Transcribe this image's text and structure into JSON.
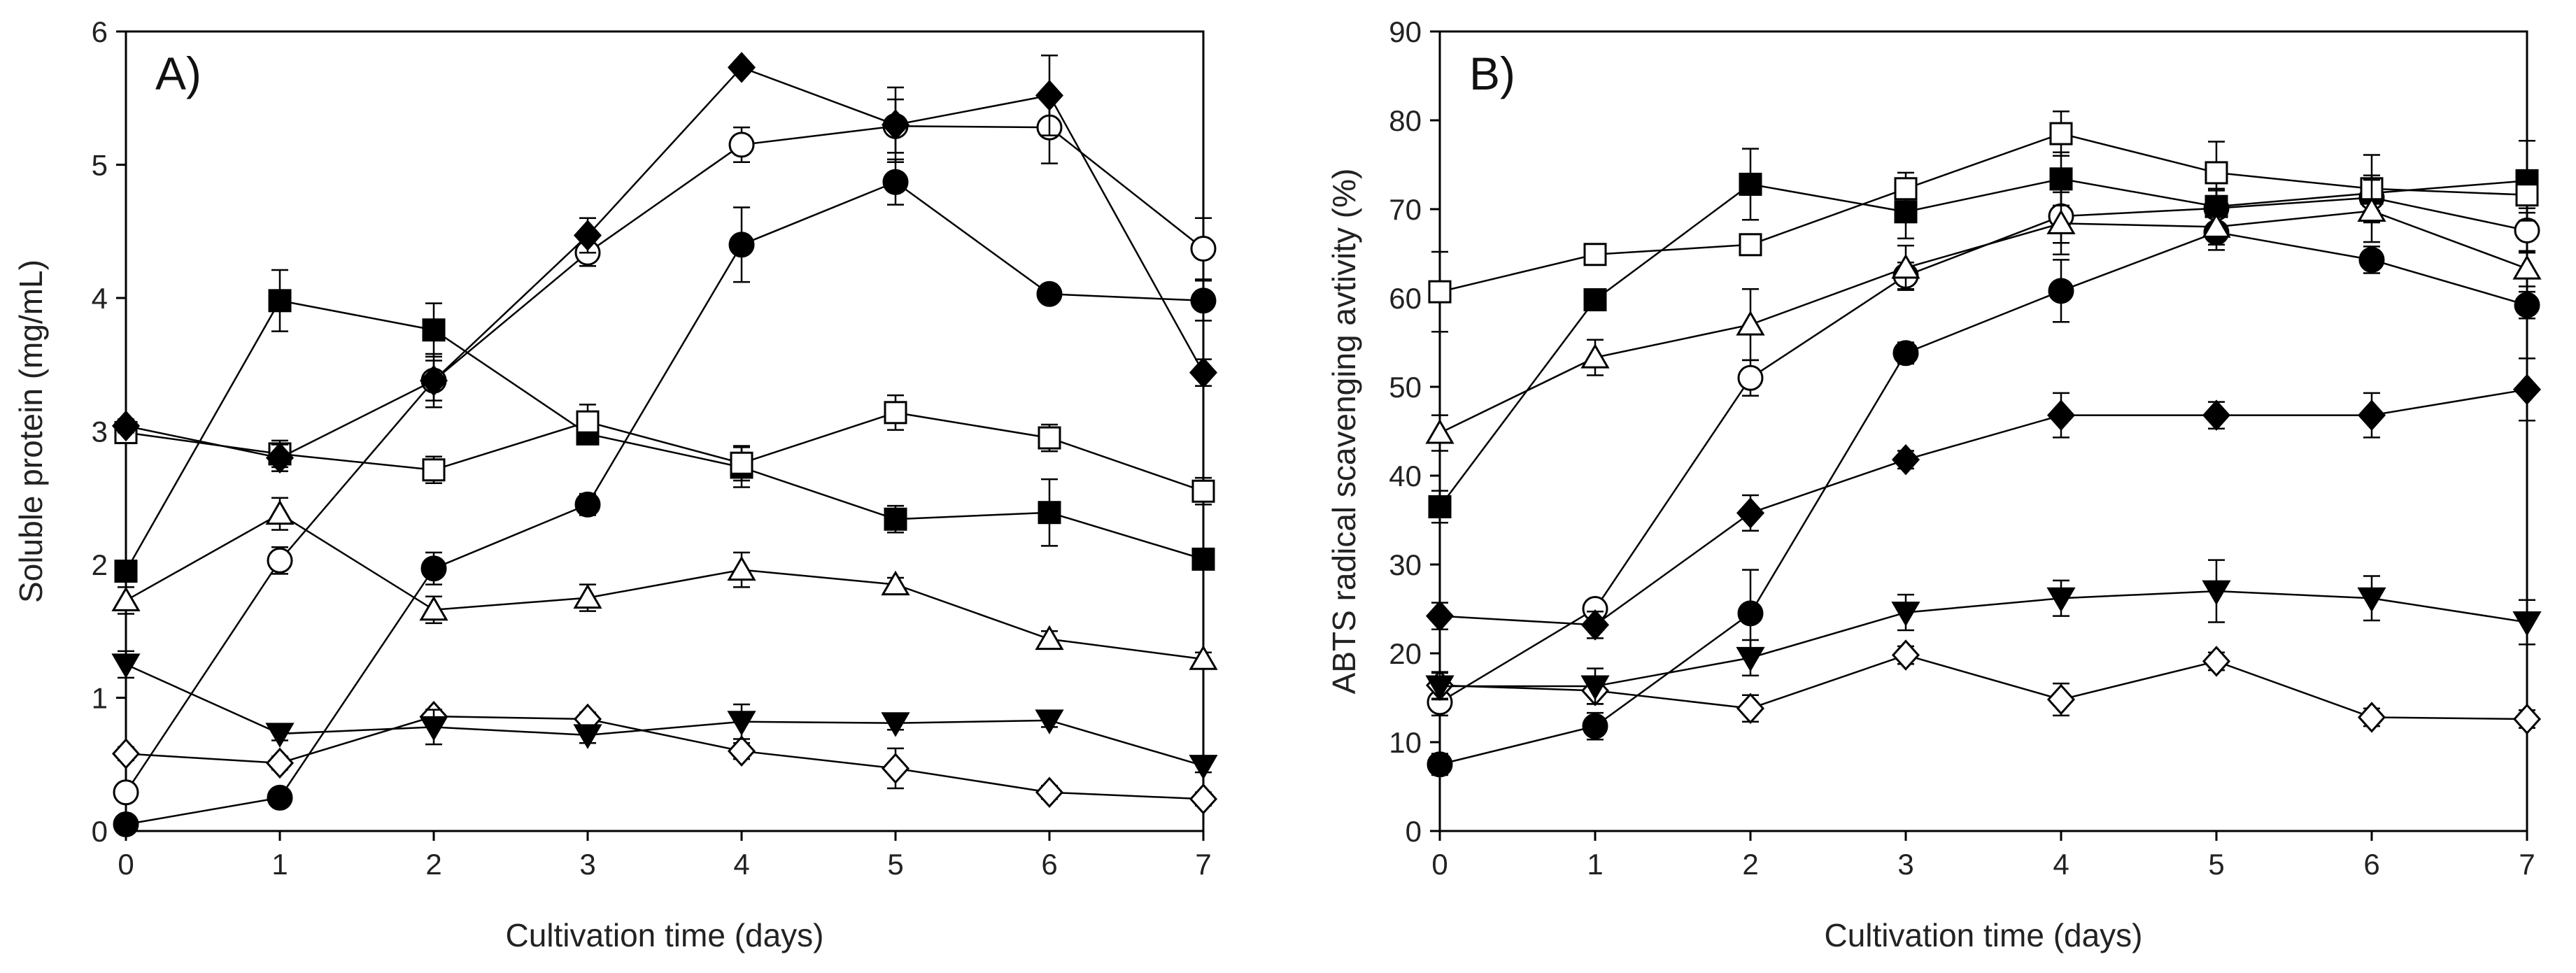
{
  "chart_data": [
    {
      "type": "line",
      "panel_label": "A)",
      "title": "",
      "xlabel": "Cultivation time (days)",
      "ylabel": "Soluble protein (mg/mL)",
      "xlim": [
        0,
        7
      ],
      "ylim": [
        0,
        6
      ],
      "xticks": [
        "0",
        "1",
        "2",
        "3",
        "4",
        "5",
        "6",
        "7"
      ],
      "yticks": [
        "0",
        "1",
        "2",
        "3",
        "4",
        "5",
        "6"
      ],
      "x": [
        0,
        1,
        2,
        3,
        4,
        5,
        6,
        7
      ],
      "grid": false,
      "series": [
        {
          "marker": "filled-circle",
          "values": [
            0.05,
            0.25,
            1.97,
            2.45,
            4.4,
            4.87,
            4.03,
            3.98
          ],
          "errors": [
            0.03,
            0.05,
            0.12,
            0.08,
            0.28,
            0.17,
            0.06,
            0.15
          ]
        },
        {
          "marker": "open-circle",
          "values": [
            0.29,
            2.03,
            3.38,
            4.34,
            5.15,
            5.29,
            5.28,
            4.37
          ],
          "errors": [
            0.05,
            0.1,
            0.2,
            0.1,
            0.13,
            0.2,
            0.27,
            0.23
          ]
        },
        {
          "marker": "filled-square",
          "values": [
            1.95,
            3.98,
            3.76,
            2.98,
            2.73,
            2.34,
            2.39,
            2.04
          ],
          "errors": [
            0.06,
            0.23,
            0.2,
            0.06,
            0.15,
            0.1,
            0.25,
            0.06
          ]
        },
        {
          "marker": "open-square",
          "values": [
            2.99,
            2.83,
            2.71,
            3.07,
            2.76,
            3.14,
            2.95,
            2.55
          ],
          "errors": [
            0.05,
            0.1,
            0.1,
            0.13,
            0.13,
            0.13,
            0.1,
            0.1
          ]
        },
        {
          "marker": "filled-diamond",
          "values": [
            3.04,
            2.8,
            3.38,
            4.47,
            5.73,
            5.3,
            5.52,
            3.44
          ],
          "errors": [
            0.05,
            0.1,
            0.15,
            0.13,
            0.02,
            0.28,
            0.3,
            0.1
          ]
        },
        {
          "marker": "open-diamond",
          "values": [
            0.58,
            0.51,
            0.86,
            0.84,
            0.6,
            0.47,
            0.29,
            0.24
          ],
          "errors": [
            0.05,
            0.05,
            0.05,
            0.05,
            0.06,
            0.15,
            0.05,
            0.05
          ]
        },
        {
          "marker": "filled-triangle-down",
          "values": [
            1.25,
            0.73,
            0.78,
            0.72,
            0.82,
            0.81,
            0.83,
            0.49
          ],
          "errors": [
            0.1,
            0.05,
            0.13,
            0.06,
            0.13,
            0.05,
            0.05,
            0.05
          ]
        },
        {
          "marker": "open-triangle-up",
          "values": [
            1.73,
            2.38,
            1.66,
            1.75,
            1.96,
            1.85,
            1.44,
            1.29
          ],
          "errors": [
            0.1,
            0.12,
            0.1,
            0.1,
            0.13,
            0.05,
            0.06,
            0.05
          ]
        }
      ]
    },
    {
      "type": "line",
      "panel_label": "B)",
      "title": "",
      "xlabel": "Cultivation time (days)",
      "ylabel": "ABTS radical scavenging avtivity (%)",
      "xlim": [
        0,
        7
      ],
      "ylim": [
        0,
        90
      ],
      "xticks": [
        "0",
        "1",
        "2",
        "3",
        "4",
        "5",
        "6",
        "7"
      ],
      "yticks": [
        "0",
        "10",
        "20",
        "30",
        "40",
        "50",
        "60",
        "70",
        "80",
        "90"
      ],
      "x": [
        0,
        1,
        2,
        3,
        4,
        5,
        6,
        7
      ],
      "grid": false,
      "series": [
        {
          "marker": "filled-circle",
          "values": [
            7.5,
            11.8,
            24.5,
            53.8,
            60.8,
            67.4,
            64.3,
            59.2
          ],
          "errors": [
            1.2,
            1.5,
            4.9,
            1.2,
            3.5,
            2.0,
            1.5,
            1.5
          ]
        },
        {
          "marker": "open-circle",
          "values": [
            14.5,
            25.0,
            51.0,
            62.5,
            69.2,
            70.1,
            71.3,
            67.6
          ],
          "errors": [
            1.5,
            1.0,
            2.0,
            1.5,
            3.0,
            2.0,
            2.5,
            2.5
          ]
        },
        {
          "marker": "filled-square",
          "values": [
            36.5,
            59.8,
            72.8,
            69.7,
            73.4,
            70.3,
            71.8,
            73.2
          ],
          "errors": [
            1.8,
            1.0,
            4.0,
            3.0,
            3.0,
            2.0,
            2.0,
            4.5
          ]
        },
        {
          "marker": "open-square",
          "values": [
            60.7,
            64.9,
            66.0,
            72.3,
            78.5,
            74.1,
            72.3,
            71.6
          ],
          "errors": [
            4.5,
            1.0,
            1.0,
            1.8,
            2.5,
            3.5,
            3.8,
            2.0
          ]
        },
        {
          "marker": "filled-diamond",
          "values": [
            24.2,
            23.2,
            35.8,
            41.8,
            46.8,
            46.8,
            46.8,
            49.7
          ],
          "errors": [
            1.5,
            1.5,
            2.0,
            1.0,
            2.5,
            1.5,
            2.5,
            3.5
          ]
        },
        {
          "marker": "open-diamond",
          "values": [
            16.4,
            15.8,
            13.8,
            19.8,
            14.8,
            19.1,
            12.8,
            12.6
          ],
          "errors": [
            1.5,
            1.5,
            1.5,
            1.0,
            1.8,
            1.0,
            1.0,
            1.0
          ]
        },
        {
          "marker": "filled-triangle-down",
          "values": [
            16.3,
            16.3,
            19.5,
            24.6,
            26.2,
            27.0,
            26.2,
            23.5
          ],
          "errors": [
            1.5,
            2.0,
            2.0,
            2.0,
            2.0,
            3.5,
            2.5,
            2.5
          ]
        },
        {
          "marker": "open-triangle-up",
          "values": [
            44.8,
            53.3,
            57.0,
            63.4,
            68.4,
            68.0,
            69.8,
            63.3
          ],
          "errors": [
            2.0,
            2.0,
            4.0,
            2.5,
            3.5,
            2.0,
            3.5,
            2.0
          ]
        }
      ]
    }
  ]
}
